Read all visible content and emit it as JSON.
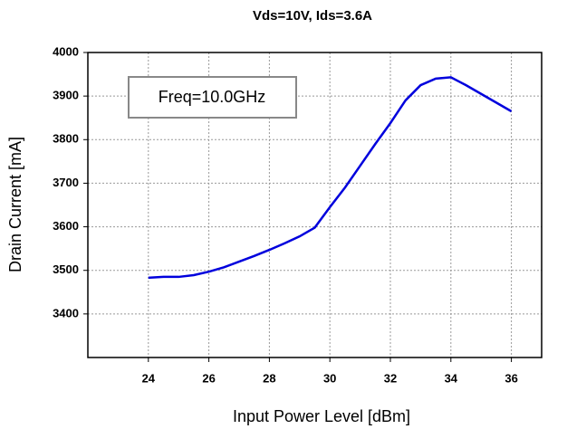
{
  "chart_data": {
    "type": "line",
    "title": "Vds=10V, Ids=3.6A",
    "x_label": "Input Power Level [dBm]",
    "y_label": "Drain Current [mA]",
    "annotation": "Freq=10.0GHz",
    "x": [
      24,
      24.5,
      25,
      25.5,
      26,
      26.5,
      27,
      27.5,
      28,
      28.5,
      29,
      29.5,
      30,
      30.5,
      31,
      31.5,
      32,
      32.5,
      33,
      33.5,
      34,
      34.5,
      35,
      35.5,
      36
    ],
    "series": [
      {
        "name": "Drain Current",
        "color": "#0000dd",
        "values": [
          3483,
          3485,
          3485,
          3489,
          3497,
          3507,
          3520,
          3533,
          3547,
          3562,
          3578,
          3598,
          3645,
          3690,
          3740,
          3790,
          3838,
          3890,
          3925,
          3940,
          3943,
          3925,
          3905,
          3885,
          3865
        ]
      }
    ],
    "xlim": [
      22,
      37
    ],
    "xticks": [
      24,
      26,
      28,
      30,
      32,
      34,
      36
    ],
    "ylim": [
      3300,
      4000
    ],
    "yticks": [
      3400,
      3500,
      3600,
      3700,
      3800,
      3900,
      4000
    ],
    "grid": true
  }
}
